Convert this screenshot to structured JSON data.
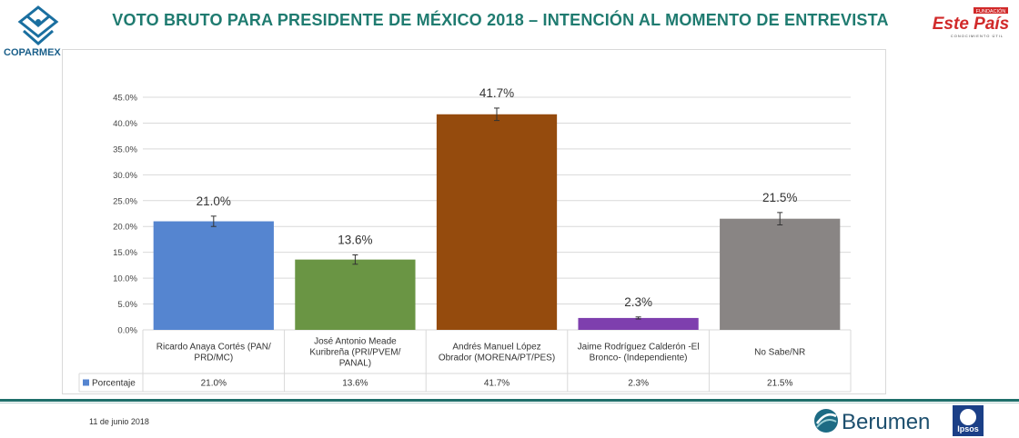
{
  "header": {
    "title": "VOTO BRUTO PARA PRESIDENTE DE MÉXICO 2018 – INTENCIÓN AL MOMENTO DE ENTREVISTA",
    "left_logo_text": "COPARMEX",
    "right_logo_top": "FUNDACIÓN",
    "right_logo_main": "Este País",
    "right_logo_sub": "CONOCIMIENTO ÚTIL"
  },
  "footer": {
    "date": "11 de junio 2018",
    "berumen": "Berumen",
    "ipsos": "Ipsos"
  },
  "colors": {
    "title": "#1f7b70",
    "grid": "#d9d9d9"
  },
  "chart_data": {
    "type": "bar",
    "categories": [
      [
        "Ricardo Anaya Cortés (PAN/",
        "PRD/MC)"
      ],
      [
        "José Antonio Meade",
        "Kuribreña (PRI/PVEM/",
        "PANAL)"
      ],
      [
        "Andrés Manuel López",
        "Obrador (MORENA/PT/PES)"
      ],
      [
        "Jaime Rodríguez Calderón -El",
        "Bronco- (Independiente)"
      ],
      [
        "No Sabe/NR"
      ]
    ],
    "series": [
      {
        "name": "Porcentaje",
        "values": [
          21.0,
          13.6,
          41.7,
          2.3,
          21.5
        ]
      }
    ],
    "data_labels": [
      "21.0%",
      "13.6%",
      "41.7%",
      "2.3%",
      "21.5%"
    ],
    "table_values": [
      "21.0%",
      "13.6%",
      "41.7%",
      "2.3%",
      "21.5%"
    ],
    "error_margin": [
      1.0,
      0.9,
      1.2,
      0.2,
      1.2
    ],
    "bar_colors": [
      "#5585d0",
      "#6a9544",
      "#954b0d",
      "#7e3fae",
      "#898584"
    ],
    "legend_color": "#5585d0",
    "yticks": [
      "0.0%",
      "5.0%",
      "10.0%",
      "15.0%",
      "20.0%",
      "25.0%",
      "30.0%",
      "35.0%",
      "40.0%",
      "45.0%"
    ],
    "ylim": [
      0,
      45
    ],
    "grid": true,
    "legend_placement": "data-table"
  }
}
